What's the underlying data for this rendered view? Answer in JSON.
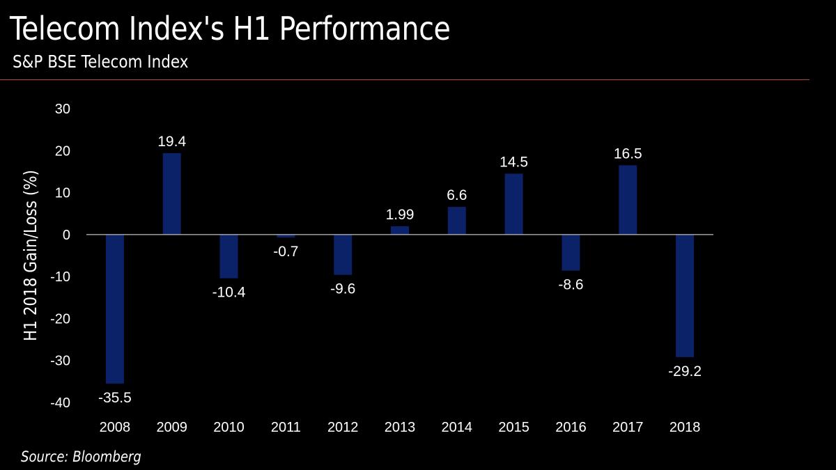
{
  "header": {
    "title": "Telecom Index's H1 Performance",
    "subtitle": "S&P BSE Telecom Index"
  },
  "footer": {
    "source": "Source: Bloomberg"
  },
  "colors": {
    "background": "#000000",
    "bar": "#0b2168",
    "text": "#ffffff",
    "rule": "#b84a3c",
    "baseline": "#bfbfbf"
  },
  "chart_data": {
    "type": "bar",
    "title": "Telecom Index's H1 Performance",
    "subtitle": "S&P BSE Telecom Index",
    "xlabel": "",
    "ylabel": "H1 2018 Gain/Loss (%)",
    "ylim": [
      -40,
      30
    ],
    "yticks": [
      30,
      20,
      10,
      0,
      -10,
      -20,
      -30,
      -40
    ],
    "grid": false,
    "legend": "none",
    "categories": [
      "2008",
      "2009",
      "2010",
      "2011",
      "2012",
      "2013",
      "2014",
      "2015",
      "2016",
      "2017",
      "2018"
    ],
    "values": [
      -35.5,
      19.4,
      -10.4,
      -0.7,
      -9.6,
      1.99,
      6.6,
      14.5,
      -8.6,
      16.5,
      -29.2
    ],
    "value_labels": [
      "-35.5",
      "19.4",
      "-10.4",
      "-0.7",
      "-9.6",
      "1.99",
      "6.6",
      "14.5",
      "-8.6",
      "16.5",
      "-29.2"
    ]
  }
}
